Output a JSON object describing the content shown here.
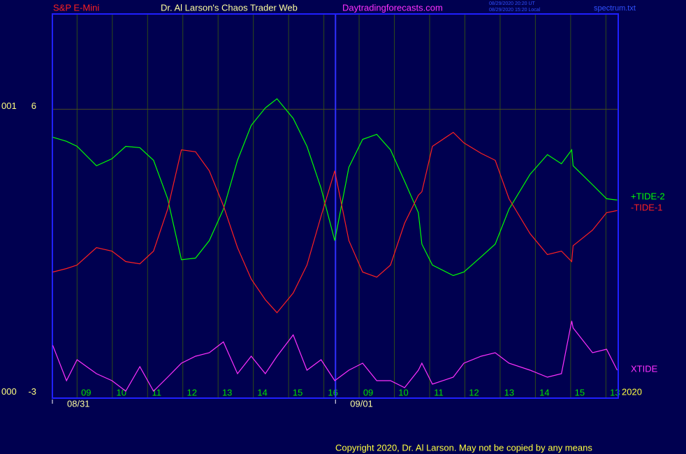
{
  "header": {
    "instrument": "S&P E-Mini",
    "site": "Dr. Al Larson's Chaos Trader Web",
    "url": "Daytradingforecasts.com",
    "timestamps": [
      "08/29/2020 20:20 UT",
      "08/29/2020 15:20 Local"
    ],
    "file": "spectrum.txt"
  },
  "chart_data": {
    "type": "line",
    "x": [
      -0.69,
      -0.3,
      0,
      0.55,
      0.99,
      1.38,
      1.78,
      2.17,
      2.57,
      2.96,
      3.36,
      3.75,
      4.15,
      4.55,
      4.94,
      5.34,
      5.67,
      6.13,
      6.52,
      6.92,
      7.31,
      7.71,
      8.1,
      8.5,
      8.89,
      9.29,
      9.68,
      9.78,
      10.08,
      10.67,
      10.97,
      11.46,
      11.86,
      12.25,
      12.85,
      13.34,
      13.74,
      14.03,
      14.07,
      14.62,
      15.02,
      15.32
    ],
    "series": [
      {
        "name": "+TIDE-2",
        "color": "#00ff00",
        "values": [
          5.12,
          4.99,
          4.83,
          4.22,
          4.44,
          4.83,
          4.79,
          4.39,
          3.18,
          1.26,
          1.31,
          1.86,
          2.85,
          4.39,
          5.49,
          6.04,
          6.33,
          5.71,
          4.83,
          3.51,
          1.86,
          4.17,
          5.05,
          5.21,
          4.72,
          3.73,
          2.74,
          1.75,
          1.09,
          0.76,
          0.87,
          1.35,
          1.75,
          2.85,
          3.95,
          4.57,
          4.28,
          4.72,
          4.22,
          3.62,
          3.18,
          3.14
        ]
      },
      {
        "name": "-TIDE-1",
        "color": "#ff2020",
        "values": [
          0.87,
          0.98,
          1.09,
          1.64,
          1.53,
          1.2,
          1.13,
          1.53,
          2.85,
          4.72,
          4.66,
          4.06,
          2.96,
          1.64,
          0.65,
          0,
          -0.41,
          0.21,
          1.09,
          2.63,
          4.06,
          1.86,
          0.87,
          0.71,
          1.09,
          2.41,
          3.29,
          3.4,
          4.83,
          5.27,
          4.94,
          4.61,
          4.39,
          3.18,
          2.08,
          1.42,
          1.53,
          1.2,
          1.7,
          2.19,
          2.74,
          2.81
        ]
      },
      {
        "name": "XTIDE",
        "color": "#ff30ff",
        "values": [
          -1.44,
          -2.55,
          -1.89,
          -2.33,
          -2.55,
          -2.88,
          -2.11,
          -2.88,
          -2.44,
          -2,
          -1.78,
          -1.67,
          -1.33,
          -2.33,
          -1.78,
          -2.33,
          -1.78,
          -1.11,
          -2.22,
          -1.89,
          -2.55,
          -2.22,
          -2,
          -2.55,
          -2.55,
          -2.77,
          -2.22,
          -2,
          -2.66,
          -2.44,
          -2,
          -1.78,
          -1.67,
          -2,
          -2.22,
          -2.44,
          -2.33,
          -0.67,
          -0.89,
          -1.67,
          -1.56,
          -2.22
        ]
      }
    ],
    "xlim": [
      -0.7,
      15.35
    ],
    "ylim": [
      -3.1,
      9
    ],
    "yticks": [
      6,
      -3
    ],
    "y_codes": [
      "001",
      "000"
    ],
    "xticks": [
      {
        "value": 0,
        "label": "09"
      },
      {
        "value": 1,
        "label": "10"
      },
      {
        "value": 2,
        "label": "11"
      },
      {
        "value": 3,
        "label": "12"
      },
      {
        "value": 4,
        "label": "13"
      },
      {
        "value": 5,
        "label": "14"
      },
      {
        "value": 6,
        "label": "15"
      },
      {
        "value": 7,
        "label": "16"
      },
      {
        "value": 8,
        "label": "09"
      },
      {
        "value": 9,
        "label": "10"
      },
      {
        "value": 10,
        "label": "11"
      },
      {
        "value": 11,
        "label": "12"
      },
      {
        "value": 12,
        "label": "13"
      },
      {
        "value": 13,
        "label": "14"
      },
      {
        "value": 14,
        "label": "15"
      },
      {
        "value": 15,
        "label": "13"
      }
    ],
    "dates": [
      {
        "value": -0.7,
        "label": "08/31"
      },
      {
        "value": 7.33,
        "label": "09/01"
      }
    ],
    "year": "2020",
    "grid": true
  },
  "footer": {
    "copyright": "Copyright 2020, Dr. Al Larson. May not be copied by any means"
  }
}
